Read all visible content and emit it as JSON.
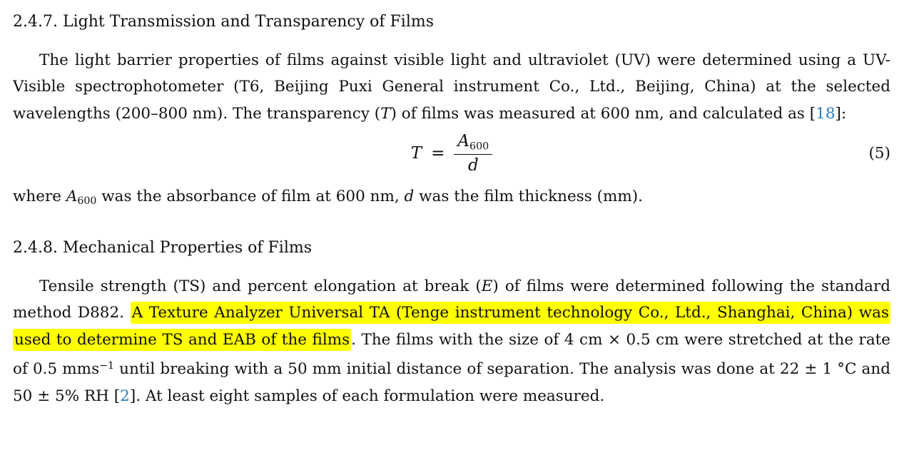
{
  "page": {
    "background": "#ffffff",
    "text_color": "#111111",
    "link_color": "#2d7ebb",
    "highlight_color": "#ffff00"
  },
  "section_247": {
    "heading": "2.4.7. Light Transmission and Transparency of Films",
    "paragraph": [
      {
        "t": "The light barrier properties of films against visible light and ultraviolet (UV) were determined using a UV-Visible spectrophotometer (T6, Beijing Puxi General instrument Co., Ltd., Beijing, China) at the selected wavelengths (200–800 nm). The transparency ("
      },
      {
        "t": "T",
        "s": "i"
      },
      {
        "t": ") of films was measured at 600 nm, and calculated as ["
      },
      {
        "t": "18",
        "s": "link",
        "n": "citation-link-18"
      },
      {
        "t": "]:"
      }
    ],
    "equation": {
      "lhs": "T",
      "rel": "=",
      "num_base": "A",
      "num_sub": "600",
      "den": "d",
      "number": "(5)"
    },
    "where_paragraph": [
      {
        "t": "where "
      },
      {
        "t": "A",
        "s": "i"
      },
      {
        "t": "600",
        "s": "sub"
      },
      {
        "t": " was the absorbance of film at 600 nm, "
      },
      {
        "t": "d",
        "s": "i"
      },
      {
        "t": " was the film thickness (mm)."
      }
    ]
  },
  "section_248": {
    "heading": "2.4.8. Mechanical Properties of Films",
    "paragraph": [
      {
        "t": "Tensile strength (TS) and percent elongation at break ("
      },
      {
        "t": "E",
        "s": "i"
      },
      {
        "t": ") of films were determined following the standard method D882.  "
      },
      {
        "t": "A Texture Analyzer Universal TA (Tenge instrument technology Co., Ltd., Shanghai, China) was used to determine TS and EAB of the films",
        "s": "hl",
        "n": "highlighted-text"
      },
      {
        "t": ". The films with the size of 4 cm × 0.5 cm were stretched at the rate of 0.5 mms"
      },
      {
        "t": "−1",
        "s": "sup"
      },
      {
        "t": " until breaking with a 50 mm initial distance of separation. The analysis was done at 22 ± 1 °C and 50 ± 5% RH ["
      },
      {
        "t": "2",
        "s": "link",
        "n": "citation-link-2"
      },
      {
        "t": "]. At least eight samples of each formulation were measured."
      }
    ]
  }
}
